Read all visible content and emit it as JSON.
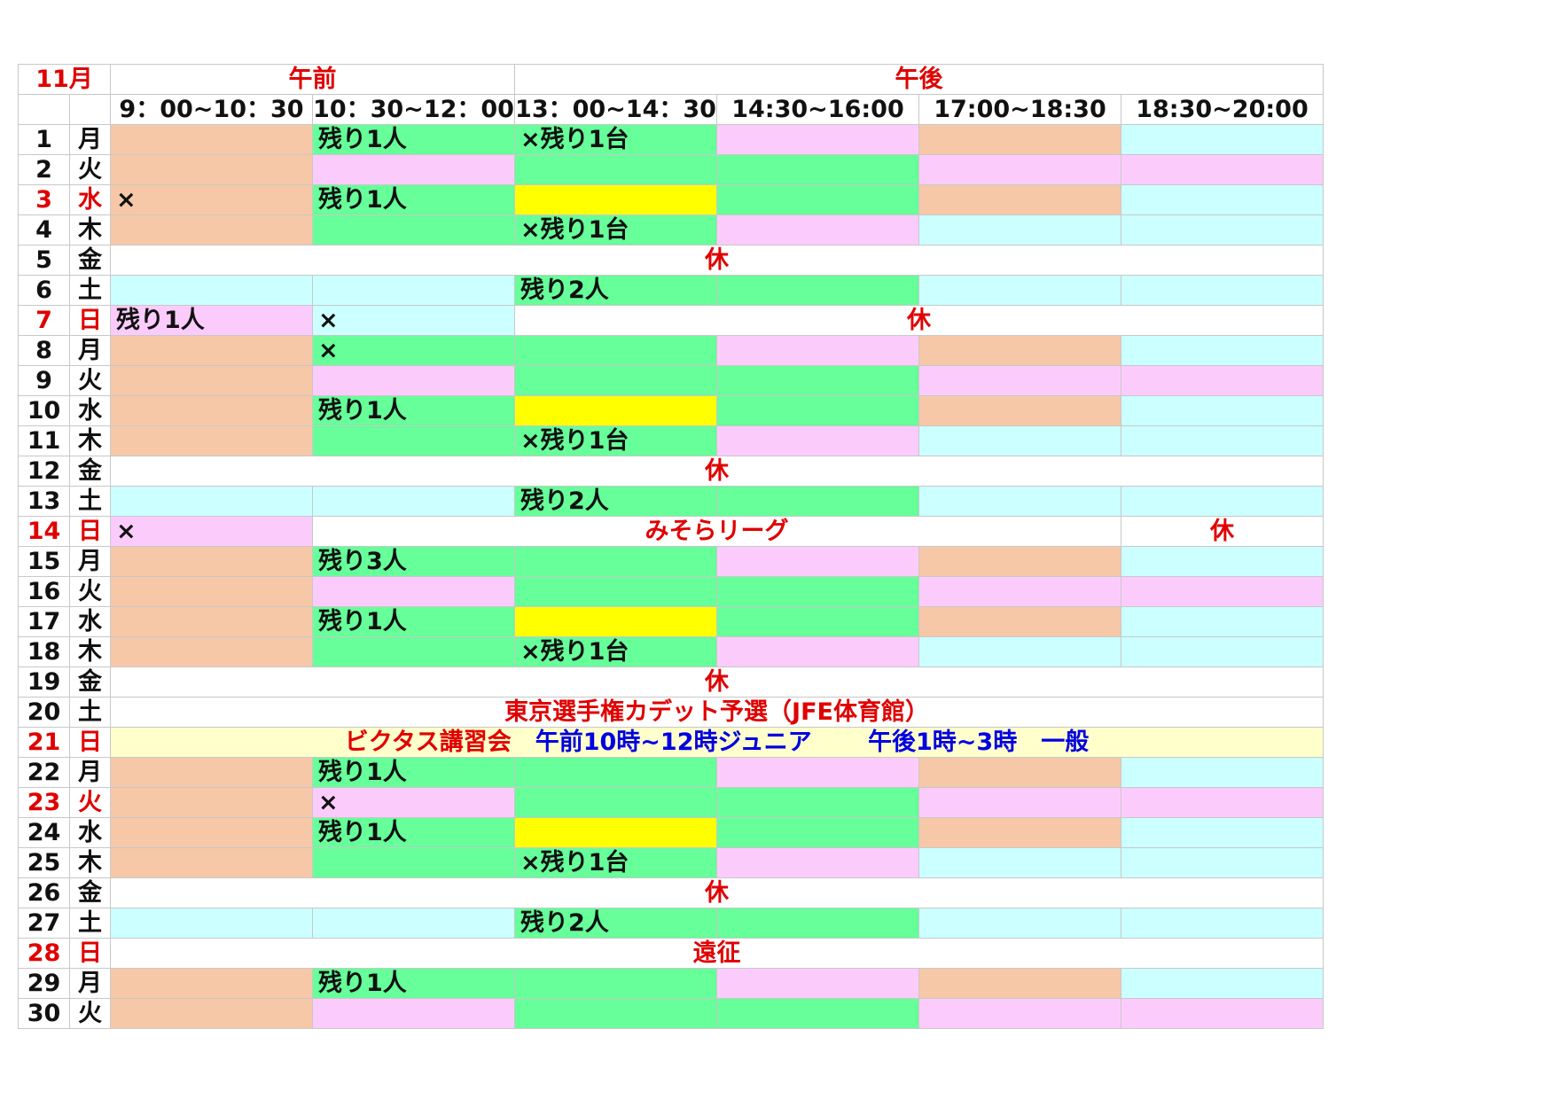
{
  "header": {
    "month": "11月",
    "am_label": "午前",
    "pm_label": "午後",
    "slots": [
      "9：00~10：30",
      "10：30~12：00",
      "13：00~14：30",
      "14:30~16:00",
      "17:00~18:30",
      "18:30~20:00"
    ]
  },
  "colors": {
    "o": "#f6c8a8",
    "g": "#66ff99",
    "p": "#fbccfb",
    "c": "#ccffff",
    "y": "#ffff00",
    "w": "#ffffff",
    "ly": "#ffffcc",
    "holiday_red": "#e00000",
    "notice_blue": "#0000e0"
  },
  "rows": [
    {
      "date": "1",
      "dow": "月",
      "red": false,
      "cells": [
        {
          "bg": "o",
          "text": ""
        },
        {
          "bg": "g",
          "text": "残り1人"
        },
        {
          "bg": "g",
          "text": "×残り1台"
        },
        {
          "bg": "p",
          "text": ""
        },
        {
          "bg": "o",
          "text": ""
        },
        {
          "bg": "c",
          "text": ""
        }
      ]
    },
    {
      "date": "2",
      "dow": "火",
      "red": false,
      "cells": [
        {
          "bg": "o",
          "text": ""
        },
        {
          "bg": "p",
          "text": ""
        },
        {
          "bg": "g",
          "text": ""
        },
        {
          "bg": "g",
          "text": ""
        },
        {
          "bg": "p",
          "text": ""
        },
        {
          "bg": "p",
          "text": ""
        }
      ]
    },
    {
      "date": "3",
      "dow": "水",
      "red": true,
      "cells": [
        {
          "bg": "o",
          "text": "×"
        },
        {
          "bg": "g",
          "text": "残り1人"
        },
        {
          "bg": "y",
          "text": ""
        },
        {
          "bg": "g",
          "text": ""
        },
        {
          "bg": "o",
          "text": ""
        },
        {
          "bg": "c",
          "text": ""
        }
      ]
    },
    {
      "date": "4",
      "dow": "木",
      "red": false,
      "cells": [
        {
          "bg": "o",
          "text": ""
        },
        {
          "bg": "g",
          "text": ""
        },
        {
          "bg": "g",
          "text": "×残り1台"
        },
        {
          "bg": "p",
          "text": ""
        },
        {
          "bg": "c",
          "text": ""
        },
        {
          "bg": "c",
          "text": ""
        }
      ]
    },
    {
      "date": "5",
      "dow": "金",
      "red": false,
      "cells": [
        {
          "bg": "w",
          "span": 6,
          "text": "休",
          "red": true
        }
      ]
    },
    {
      "date": "6",
      "dow": "土",
      "red": false,
      "cells": [
        {
          "bg": "c",
          "text": ""
        },
        {
          "bg": "c",
          "text": ""
        },
        {
          "bg": "g",
          "text": "残り2人"
        },
        {
          "bg": "g",
          "text": ""
        },
        {
          "bg": "c",
          "text": ""
        },
        {
          "bg": "c",
          "text": ""
        }
      ]
    },
    {
      "date": "7",
      "dow": "日",
      "red": true,
      "cells": [
        {
          "bg": "p",
          "text": "残り1人"
        },
        {
          "bg": "c",
          "text": "×"
        },
        {
          "bg": "w",
          "span": 4,
          "text": "休",
          "red": true
        }
      ]
    },
    {
      "date": "8",
      "dow": "月",
      "red": false,
      "cells": [
        {
          "bg": "o",
          "text": ""
        },
        {
          "bg": "g",
          "text": "×"
        },
        {
          "bg": "g",
          "text": ""
        },
        {
          "bg": "p",
          "text": ""
        },
        {
          "bg": "o",
          "text": ""
        },
        {
          "bg": "c",
          "text": ""
        }
      ]
    },
    {
      "date": "9",
      "dow": "火",
      "red": false,
      "cells": [
        {
          "bg": "o",
          "text": ""
        },
        {
          "bg": "p",
          "text": ""
        },
        {
          "bg": "g",
          "text": ""
        },
        {
          "bg": "g",
          "text": ""
        },
        {
          "bg": "p",
          "text": ""
        },
        {
          "bg": "p",
          "text": ""
        }
      ]
    },
    {
      "date": "10",
      "dow": "水",
      "red": false,
      "cells": [
        {
          "bg": "o",
          "text": ""
        },
        {
          "bg": "g",
          "text": "残り1人"
        },
        {
          "bg": "y",
          "text": ""
        },
        {
          "bg": "g",
          "text": ""
        },
        {
          "bg": "o",
          "text": ""
        },
        {
          "bg": "c",
          "text": ""
        }
      ]
    },
    {
      "date": "11",
      "dow": "木",
      "red": false,
      "cells": [
        {
          "bg": "o",
          "text": ""
        },
        {
          "bg": "g",
          "text": ""
        },
        {
          "bg": "g",
          "text": "×残り1台"
        },
        {
          "bg": "p",
          "text": ""
        },
        {
          "bg": "c",
          "text": ""
        },
        {
          "bg": "c",
          "text": ""
        }
      ]
    },
    {
      "date": "12",
      "dow": "金",
      "red": false,
      "cells": [
        {
          "bg": "w",
          "span": 6,
          "text": "休",
          "red": true
        }
      ]
    },
    {
      "date": "13",
      "dow": "土",
      "red": false,
      "cells": [
        {
          "bg": "c",
          "text": ""
        },
        {
          "bg": "c",
          "text": ""
        },
        {
          "bg": "g",
          "text": "残り2人"
        },
        {
          "bg": "g",
          "text": ""
        },
        {
          "bg": "c",
          "text": ""
        },
        {
          "bg": "c",
          "text": ""
        }
      ]
    },
    {
      "date": "14",
      "dow": "日",
      "red": true,
      "cells": [
        {
          "bg": "p",
          "text": "×"
        },
        {
          "bg": "w",
          "span": 4,
          "text": "みそらリーグ",
          "red": true
        },
        {
          "bg": "w",
          "text": "休",
          "red": true,
          "center": true
        }
      ]
    },
    {
      "date": "15",
      "dow": "月",
      "red": false,
      "cells": [
        {
          "bg": "o",
          "text": ""
        },
        {
          "bg": "g",
          "text": "残り3人"
        },
        {
          "bg": "g",
          "text": ""
        },
        {
          "bg": "p",
          "text": ""
        },
        {
          "bg": "o",
          "text": ""
        },
        {
          "bg": "c",
          "text": ""
        }
      ]
    },
    {
      "date": "16",
      "dow": "火",
      "red": false,
      "cells": [
        {
          "bg": "o",
          "text": ""
        },
        {
          "bg": "p",
          "text": ""
        },
        {
          "bg": "g",
          "text": ""
        },
        {
          "bg": "g",
          "text": ""
        },
        {
          "bg": "p",
          "text": ""
        },
        {
          "bg": "p",
          "text": ""
        }
      ]
    },
    {
      "date": "17",
      "dow": "水",
      "red": false,
      "cells": [
        {
          "bg": "o",
          "text": ""
        },
        {
          "bg": "g",
          "text": "残り1人"
        },
        {
          "bg": "y",
          "text": ""
        },
        {
          "bg": "g",
          "text": ""
        },
        {
          "bg": "o",
          "text": ""
        },
        {
          "bg": "c",
          "text": ""
        }
      ]
    },
    {
      "date": "18",
      "dow": "木",
      "red": false,
      "cells": [
        {
          "bg": "o",
          "text": ""
        },
        {
          "bg": "g",
          "text": ""
        },
        {
          "bg": "g",
          "text": "×残り1台"
        },
        {
          "bg": "p",
          "text": ""
        },
        {
          "bg": "c",
          "text": ""
        },
        {
          "bg": "c",
          "text": ""
        }
      ]
    },
    {
      "date": "19",
      "dow": "金",
      "red": false,
      "cells": [
        {
          "bg": "w",
          "span": 6,
          "text": "休",
          "red": true
        }
      ]
    },
    {
      "date": "20",
      "dow": "土",
      "red": false,
      "cells": [
        {
          "bg": "w",
          "span": 6,
          "text": "東京選手権カデット予選（JFE体育館）",
          "red": true
        }
      ]
    },
    {
      "date": "21",
      "dow": "日",
      "red": true,
      "cells": [
        {
          "bg": "ly",
          "span": 6,
          "parts": [
            {
              "text": "ビクタス講習会",
              "color": "red"
            },
            {
              "text": "　午前10時~12時ジュニア　　 午後1時~3時　一般",
              "color": "blue"
            }
          ]
        }
      ]
    },
    {
      "date": "22",
      "dow": "月",
      "red": false,
      "cells": [
        {
          "bg": "o",
          "text": ""
        },
        {
          "bg": "g",
          "text": "残り1人"
        },
        {
          "bg": "g",
          "text": ""
        },
        {
          "bg": "p",
          "text": ""
        },
        {
          "bg": "o",
          "text": ""
        },
        {
          "bg": "c",
          "text": ""
        }
      ]
    },
    {
      "date": "23",
      "dow": "火",
      "red": true,
      "cells": [
        {
          "bg": "o",
          "text": ""
        },
        {
          "bg": "p",
          "text": "×"
        },
        {
          "bg": "g",
          "text": ""
        },
        {
          "bg": "g",
          "text": ""
        },
        {
          "bg": "p",
          "text": ""
        },
        {
          "bg": "p",
          "text": ""
        }
      ]
    },
    {
      "date": "24",
      "dow": "水",
      "red": false,
      "cells": [
        {
          "bg": "o",
          "text": ""
        },
        {
          "bg": "g",
          "text": "残り1人"
        },
        {
          "bg": "y",
          "text": ""
        },
        {
          "bg": "g",
          "text": ""
        },
        {
          "bg": "o",
          "text": ""
        },
        {
          "bg": "c",
          "text": ""
        }
      ]
    },
    {
      "date": "25",
      "dow": "木",
      "red": false,
      "cells": [
        {
          "bg": "o",
          "text": ""
        },
        {
          "bg": "g",
          "text": ""
        },
        {
          "bg": "g",
          "text": "×残り1台"
        },
        {
          "bg": "p",
          "text": ""
        },
        {
          "bg": "c",
          "text": ""
        },
        {
          "bg": "c",
          "text": ""
        }
      ]
    },
    {
      "date": "26",
      "dow": "金",
      "red": false,
      "cells": [
        {
          "bg": "w",
          "span": 6,
          "text": "休",
          "red": true
        }
      ]
    },
    {
      "date": "27",
      "dow": "土",
      "red": false,
      "cells": [
        {
          "bg": "c",
          "text": ""
        },
        {
          "bg": "c",
          "text": ""
        },
        {
          "bg": "g",
          "text": "残り2人"
        },
        {
          "bg": "g",
          "text": ""
        },
        {
          "bg": "c",
          "text": ""
        },
        {
          "bg": "c",
          "text": ""
        }
      ]
    },
    {
      "date": "28",
      "dow": "日",
      "red": true,
      "cells": [
        {
          "bg": "w",
          "span": 6,
          "text": "遠征",
          "red": true
        }
      ]
    },
    {
      "date": "29",
      "dow": "月",
      "red": false,
      "cells": [
        {
          "bg": "o",
          "text": ""
        },
        {
          "bg": "g",
          "text": "残り1人"
        },
        {
          "bg": "g",
          "text": ""
        },
        {
          "bg": "p",
          "text": ""
        },
        {
          "bg": "o",
          "text": ""
        },
        {
          "bg": "c",
          "text": ""
        }
      ]
    },
    {
      "date": "30",
      "dow": "火",
      "red": false,
      "cells": [
        {
          "bg": "o",
          "text": ""
        },
        {
          "bg": "p",
          "text": ""
        },
        {
          "bg": "g",
          "text": ""
        },
        {
          "bg": "g",
          "text": ""
        },
        {
          "bg": "p",
          "text": ""
        },
        {
          "bg": "p",
          "text": ""
        }
      ]
    }
  ]
}
